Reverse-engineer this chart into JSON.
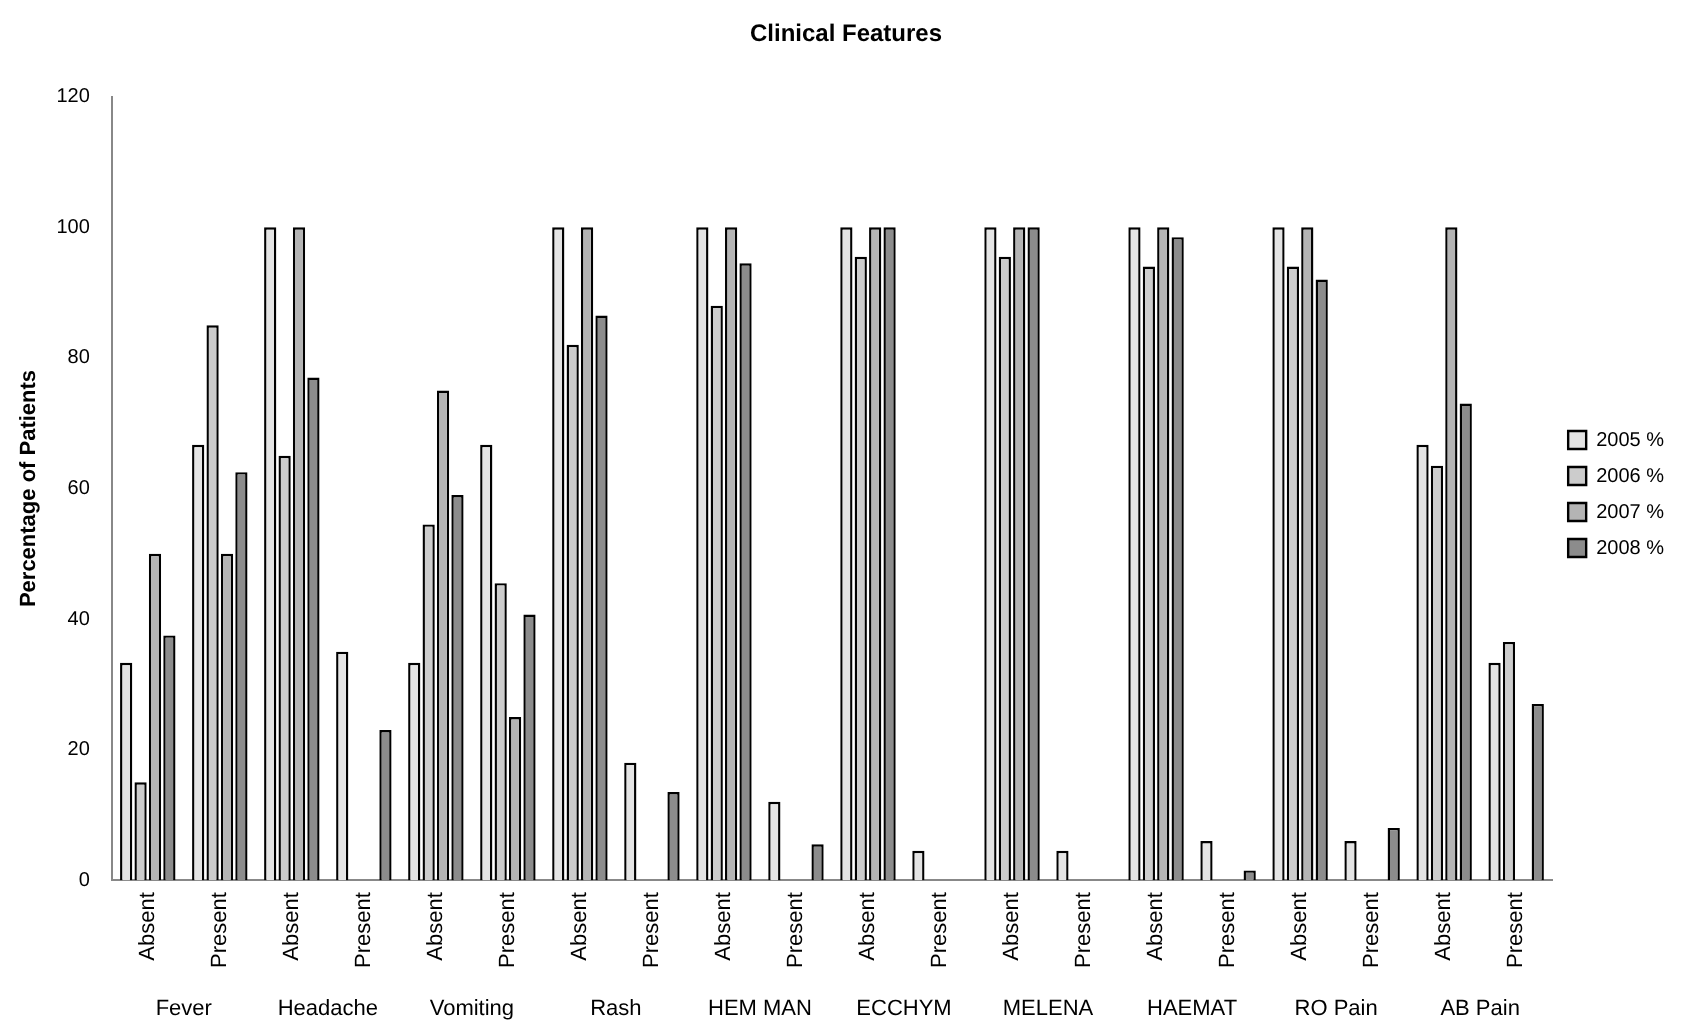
{
  "chart_data": {
    "type": "bar",
    "title": "Clinical Features",
    "ylabel": "Percentage of Patients",
    "categories": [
      "Absent",
      "Present",
      "Absent",
      "Present",
      "Absent",
      "Present",
      "Absent",
      "Present",
      "Absent",
      "Present",
      "Absent",
      "Present",
      "Absent",
      "Present",
      "Absent",
      "Present",
      "Absent",
      "Present",
      "Absent",
      "Present"
    ],
    "annotations": [
      "Fever",
      "Headache",
      "Vomiting",
      "Rash",
      "HEM MAN",
      "ECCHYM",
      "MELENA",
      "HAEMAT",
      "RO Pain",
      "AB Pain"
    ],
    "series": [
      {
        "name": "2005 %",
        "color": "#e4e4e4",
        "values": [
          33.3,
          66.7,
          100,
          35,
          33.3,
          66.7,
          100,
          18,
          100,
          12,
          100,
          4.5,
          100,
          4.5,
          100,
          6,
          100,
          6,
          66.7,
          33.3
        ]
      },
      {
        "name": "2006 %",
        "color": "#cccccc",
        "values": [
          15,
          85,
          65,
          0,
          54.5,
          45.5,
          82,
          0,
          88,
          0,
          95.5,
          0,
          95.5,
          0,
          94,
          0,
          94,
          0,
          63.5,
          36.5
        ]
      },
      {
        "name": "2007 %",
        "color": "#b4b4b4",
        "values": [
          50,
          50,
          100,
          0,
          75,
          25,
          100,
          0,
          100,
          0,
          100,
          0,
          100,
          0,
          100,
          0,
          100,
          0,
          100,
          0
        ]
      },
      {
        "name": "2008 %",
        "color": "#8c8c8c",
        "values": [
          37.5,
          62.5,
          77,
          23,
          59,
          40.7,
          86.5,
          13.5,
          94.5,
          5.5,
          100,
          0,
          100,
          0,
          98.5,
          1.5,
          92,
          8,
          73,
          27
        ]
      }
    ],
    "ylim": [
      0,
      120
    ],
    "yticks": [
      0,
      20,
      40,
      60,
      80,
      100,
      120
    ],
    "grid": false,
    "legend": "right"
  }
}
